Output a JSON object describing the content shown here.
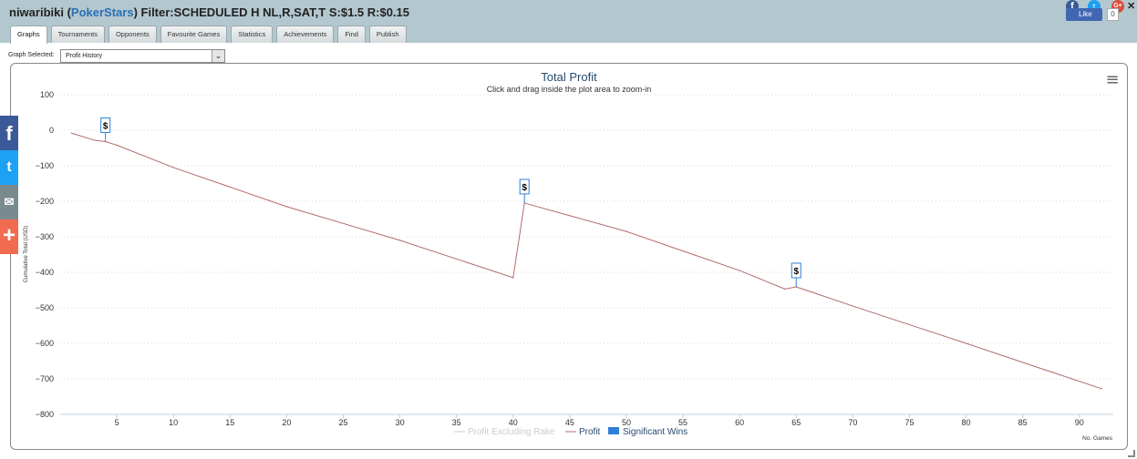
{
  "header": {
    "player": "niwaribiki",
    "open_paren": " (",
    "site": "PokerStars",
    "filter": ") Filter:SCHEDULED H NL,R,SAT,T S:$1.5 R:$0.15"
  },
  "tabs": [
    {
      "label": "Graphs",
      "active": true
    },
    {
      "label": "Tournaments"
    },
    {
      "label": "Opponents"
    },
    {
      "label": "Favourite Games"
    },
    {
      "label": "Statistics"
    },
    {
      "label": "Achievements"
    },
    {
      "label": "Find"
    },
    {
      "label": "Publish"
    }
  ],
  "social_top": {
    "fb_icon": "f",
    "tw_icon": "t",
    "gplus_icon": "G+",
    "close_icon": "✕",
    "like_label": "Like",
    "like_count": "0"
  },
  "left_social": {
    "facebook": "f",
    "twitter": "t",
    "email": "✉",
    "more": "+"
  },
  "graph_selector": {
    "label": "Graph Selected:",
    "value": "Profit History",
    "arrow": "⌄"
  },
  "menu_icon": "≡",
  "chart_data": {
    "type": "line",
    "title": "Total Profit",
    "subtitle": "Click and drag inside the plot area to zoom-in",
    "ylabel": "Cumulative Total (USD)",
    "xlabel": "No. Games",
    "ylim": [
      -800,
      100
    ],
    "xlim": [
      0,
      93
    ],
    "yticks": [
      "100",
      "0",
      "−100",
      "−200",
      "−300",
      "−400",
      "−500",
      "−600",
      "−700",
      "−800"
    ],
    "ytick_values": [
      100,
      0,
      -100,
      -200,
      -300,
      -400,
      -500,
      -600,
      -700,
      -800
    ],
    "xticks": [
      "5",
      "10",
      "15",
      "20",
      "25",
      "30",
      "35",
      "40",
      "45",
      "50",
      "55",
      "60",
      "65",
      "70",
      "75",
      "80",
      "85",
      "90"
    ],
    "xtick_values": [
      5,
      10,
      15,
      20,
      25,
      30,
      35,
      40,
      45,
      50,
      55,
      60,
      65,
      70,
      75,
      80,
      85,
      90
    ],
    "grid": true,
    "legend_position": "bottom-center",
    "series": [
      {
        "name": "Profit Excluding Rake",
        "color": "#cccccc",
        "visible": false
      },
      {
        "name": "Profit",
        "color": "#b56a6a",
        "x": [
          1,
          3,
          4,
          5,
          10,
          20,
          30,
          40,
          41,
          50,
          60,
          64,
          65,
          70,
          80,
          87,
          92
        ],
        "y": [
          -8,
          -28,
          -32,
          -42,
          -105,
          -215,
          -310,
          -415,
          -205,
          -285,
          -395,
          -447,
          -441,
          -495,
          -600,
          -675,
          -728
        ]
      },
      {
        "name": "Significant Wins",
        "color": "#2f7ed8",
        "type": "flags"
      }
    ],
    "flags": [
      {
        "x": 4,
        "y": -32,
        "label": "$"
      },
      {
        "x": 41,
        "y": -205,
        "label": "$"
      },
      {
        "x": 65,
        "y": -441,
        "label": "$"
      }
    ]
  }
}
